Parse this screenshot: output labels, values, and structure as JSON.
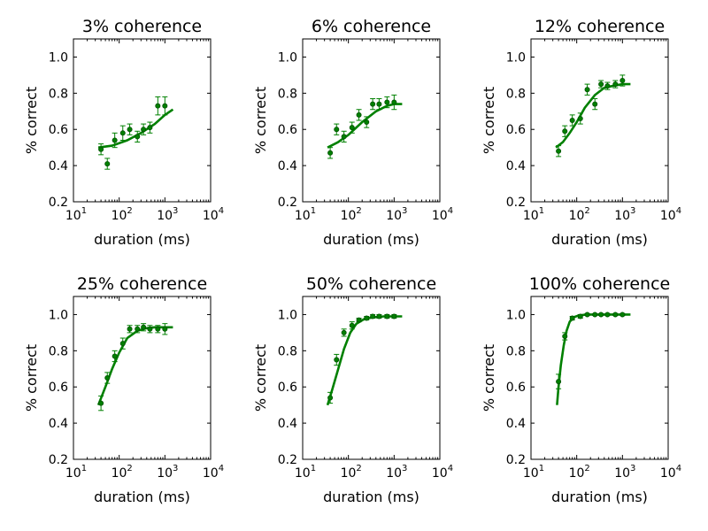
{
  "colors": {
    "series": "#008000",
    "axes": "#000000",
    "background": "#ffffff"
  },
  "chart_data": [
    {
      "type": "scatter",
      "title": "3% coherence",
      "xlabel": "duration (ms)",
      "ylabel": "% correct",
      "xscale": "log",
      "xlim": [
        10,
        10000
      ],
      "ylim": [
        0.2,
        1.1
      ],
      "xticks": [
        {
          "base": "10",
          "exp": "1"
        },
        {
          "base": "10",
          "exp": "2"
        },
        {
          "base": "10",
          "exp": "3"
        },
        {
          "base": "10",
          "exp": "4"
        }
      ],
      "yticks": [
        "0.2",
        "0.4",
        "0.6",
        "0.8",
        "1.0"
      ],
      "grid": false,
      "points": {
        "x": [
          40,
          55,
          80,
          120,
          170,
          250,
          340,
          470,
          700,
          1000
        ],
        "y": [
          0.49,
          0.41,
          0.54,
          0.58,
          0.6,
          0.56,
          0.6,
          0.61,
          0.73,
          0.73
        ],
        "err": [
          0.03,
          0.03,
          0.04,
          0.04,
          0.03,
          0.03,
          0.03,
          0.03,
          0.05,
          0.05
        ]
      },
      "fit": {
        "x": [
          35,
          70,
          150,
          300,
          600,
          1000,
          1500
        ],
        "y": [
          0.5,
          0.51,
          0.54,
          0.58,
          0.63,
          0.68,
          0.71
        ]
      }
    },
    {
      "type": "scatter",
      "title": "6% coherence",
      "xlabel": "duration (ms)",
      "ylabel": "% correct",
      "xscale": "log",
      "xlim": [
        10,
        10000
      ],
      "ylim": [
        0.2,
        1.1
      ],
      "xticks": [
        {
          "base": "10",
          "exp": "1"
        },
        {
          "base": "10",
          "exp": "2"
        },
        {
          "base": "10",
          "exp": "3"
        },
        {
          "base": "10",
          "exp": "4"
        }
      ],
      "yticks": [
        "0.2",
        "0.4",
        "0.6",
        "0.8",
        "1.0"
      ],
      "grid": false,
      "points": {
        "x": [
          40,
          55,
          80,
          120,
          170,
          250,
          340,
          470,
          700,
          1000
        ],
        "y": [
          0.47,
          0.6,
          0.56,
          0.61,
          0.68,
          0.64,
          0.74,
          0.74,
          0.75,
          0.75
        ],
        "err": [
          0.03,
          0.03,
          0.03,
          0.03,
          0.03,
          0.03,
          0.03,
          0.03,
          0.03,
          0.04
        ]
      },
      "fit": {
        "x": [
          35,
          60,
          100,
          200,
          400,
          700,
          1000,
          1500
        ],
        "y": [
          0.5,
          0.53,
          0.57,
          0.64,
          0.7,
          0.73,
          0.74,
          0.74
        ]
      }
    },
    {
      "type": "scatter",
      "title": "12% coherence",
      "xlabel": "duration (ms)",
      "ylabel": "% correct",
      "xscale": "log",
      "xlim": [
        10,
        10000
      ],
      "ylim": [
        0.2,
        1.1
      ],
      "xticks": [
        {
          "base": "10",
          "exp": "1"
        },
        {
          "base": "10",
          "exp": "2"
        },
        {
          "base": "10",
          "exp": "3"
        },
        {
          "base": "10",
          "exp": "4"
        }
      ],
      "yticks": [
        "0.2",
        "0.4",
        "0.6",
        "0.8",
        "1.0"
      ],
      "grid": false,
      "points": {
        "x": [
          40,
          55,
          80,
          120,
          170,
          250,
          340,
          470,
          700,
          1000
        ],
        "y": [
          0.48,
          0.59,
          0.65,
          0.66,
          0.82,
          0.74,
          0.85,
          0.84,
          0.85,
          0.87
        ],
        "err": [
          0.03,
          0.03,
          0.03,
          0.03,
          0.03,
          0.03,
          0.02,
          0.02,
          0.02,
          0.03
        ]
      },
      "fit": {
        "x": [
          35,
          50,
          70,
          100,
          150,
          250,
          400,
          600,
          1000,
          1500
        ],
        "y": [
          0.5,
          0.53,
          0.58,
          0.64,
          0.72,
          0.79,
          0.83,
          0.84,
          0.85,
          0.85
        ]
      }
    },
    {
      "type": "scatter",
      "title": "25% coherence",
      "xlabel": "duration (ms)",
      "ylabel": "% correct",
      "xscale": "log",
      "xlim": [
        10,
        10000
      ],
      "ylim": [
        0.2,
        1.1
      ],
      "xticks": [
        {
          "base": "10",
          "exp": "1"
        },
        {
          "base": "10",
          "exp": "2"
        },
        {
          "base": "10",
          "exp": "3"
        },
        {
          "base": "10",
          "exp": "4"
        }
      ],
      "yticks": [
        "0.2",
        "0.4",
        "0.6",
        "0.8",
        "1.0"
      ],
      "grid": false,
      "points": {
        "x": [
          40,
          55,
          80,
          120,
          170,
          250,
          340,
          470,
          700,
          1000
        ],
        "y": [
          0.51,
          0.65,
          0.77,
          0.84,
          0.92,
          0.92,
          0.93,
          0.92,
          0.92,
          0.92
        ],
        "err": [
          0.04,
          0.03,
          0.03,
          0.03,
          0.02,
          0.02,
          0.02,
          0.02,
          0.02,
          0.03
        ]
      },
      "fit": {
        "x": [
          35,
          50,
          70,
          100,
          150,
          250,
          400,
          600,
          1000,
          1500
        ],
        "y": [
          0.5,
          0.6,
          0.7,
          0.79,
          0.87,
          0.91,
          0.925,
          0.93,
          0.93,
          0.93
        ]
      }
    },
    {
      "type": "scatter",
      "title": "50% coherence",
      "xlabel": "duration (ms)",
      "ylabel": "% correct",
      "xscale": "log",
      "xlim": [
        10,
        10000
      ],
      "ylim": [
        0.2,
        1.1
      ],
      "xticks": [
        {
          "base": "10",
          "exp": "1"
        },
        {
          "base": "10",
          "exp": "2"
        },
        {
          "base": "10",
          "exp": "3"
        },
        {
          "base": "10",
          "exp": "4"
        }
      ],
      "yticks": [
        "0.2",
        "0.4",
        "0.6",
        "0.8",
        "1.0"
      ],
      "grid": false,
      "points": {
        "x": [
          40,
          55,
          80,
          120,
          170,
          250,
          340,
          470,
          700,
          1000
        ],
        "y": [
          0.54,
          0.75,
          0.9,
          0.94,
          0.97,
          0.98,
          0.99,
          0.99,
          0.99,
          0.99
        ],
        "err": [
          0.03,
          0.03,
          0.02,
          0.02,
          0.01,
          0.01,
          0.01,
          0.01,
          0.01,
          0.01
        ]
      },
      "fit": {
        "x": [
          35,
          45,
          60,
          80,
          110,
          150,
          220,
          350,
          600,
          1000,
          1500
        ],
        "y": [
          0.5,
          0.59,
          0.7,
          0.81,
          0.9,
          0.95,
          0.975,
          0.985,
          0.99,
          0.99,
          0.99
        ]
      }
    },
    {
      "type": "scatter",
      "title": "100% coherence",
      "xlabel": "duration (ms)",
      "ylabel": "% correct",
      "xscale": "log",
      "xlim": [
        10,
        10000
      ],
      "ylim": [
        0.2,
        1.1
      ],
      "xticks": [
        {
          "base": "10",
          "exp": "1"
        },
        {
          "base": "10",
          "exp": "2"
        },
        {
          "base": "10",
          "exp": "3"
        },
        {
          "base": "10",
          "exp": "4"
        }
      ],
      "yticks": [
        "0.2",
        "0.4",
        "0.6",
        "0.8",
        "1.0"
      ],
      "grid": false,
      "points": {
        "x": [
          40,
          55,
          80,
          120,
          170,
          250,
          340,
          470,
          700,
          1000
        ],
        "y": [
          0.63,
          0.88,
          0.98,
          0.99,
          1.0,
          1.0,
          1.0,
          1.0,
          1.0,
          1.0
        ],
        "err": [
          0.04,
          0.02,
          0.01,
          0.01,
          0.005,
          0.005,
          0.005,
          0.005,
          0.005,
          0.005
        ]
      },
      "fit": {
        "x": [
          37,
          40,
          45,
          52,
          60,
          70,
          85,
          110,
          160,
          300,
          1500
        ],
        "y": [
          0.5,
          0.6,
          0.72,
          0.83,
          0.91,
          0.96,
          0.985,
          0.995,
          1.0,
          1.0,
          1.0
        ]
      }
    }
  ]
}
